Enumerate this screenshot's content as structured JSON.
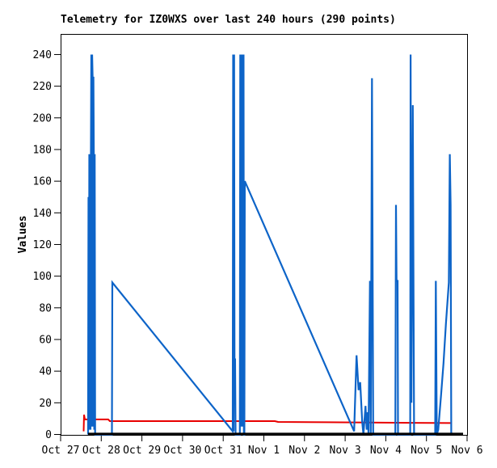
{
  "chart_data": {
    "type": "line",
    "title": "Telemetry for IZ0WXS over last 240 hours (290 points)",
    "ylabel": "Values",
    "xlabel": "",
    "x_unit": "days since Oct 27 00:00",
    "xlim": [
      0,
      10
    ],
    "ylim": [
      0,
      253
    ],
    "grid": false,
    "legend": "none",
    "background": "#ffffff",
    "frame_color": "#000000",
    "x_ticks": [
      {
        "pos": 0,
        "label": "Oct 27"
      },
      {
        "pos": 1,
        "label": "Oct 28"
      },
      {
        "pos": 2,
        "label": "Oct 29"
      },
      {
        "pos": 3,
        "label": "Oct 30"
      },
      {
        "pos": 4,
        "label": "Oct 31"
      },
      {
        "pos": 5,
        "label": "Nov 1"
      },
      {
        "pos": 6,
        "label": "Nov 2"
      },
      {
        "pos": 7,
        "label": "Nov 3"
      },
      {
        "pos": 8,
        "label": "Nov 4"
      },
      {
        "pos": 9,
        "label": "Nov 5"
      },
      {
        "pos": 10,
        "label": "Nov 6"
      }
    ],
    "y_ticks": [
      0,
      20,
      40,
      60,
      80,
      100,
      120,
      140,
      160,
      180,
      200,
      220,
      240
    ],
    "series": [
      {
        "name": "red-channel",
        "color": "#e80000",
        "width": 2,
        "points": [
          [
            0.567,
            2
          ],
          [
            0.577,
            12.5
          ],
          [
            0.597,
            9.5
          ],
          [
            1.17,
            9.5
          ],
          [
            1.21,
            8.4
          ],
          [
            5.27,
            8.4
          ],
          [
            5.35,
            7.9
          ],
          [
            6.55,
            7.7
          ],
          [
            9.6,
            7.2
          ]
        ]
      },
      {
        "name": "blue-channel",
        "color": "#0d64c8",
        "width": 2.2,
        "points": [
          [
            0.676,
            0
          ],
          [
            0.686,
            150
          ],
          [
            0.696,
            3
          ],
          [
            0.706,
            177
          ],
          [
            0.716,
            3
          ],
          [
            0.726,
            177
          ],
          [
            0.736,
            3
          ],
          [
            0.746,
            177
          ],
          [
            0.755,
            240
          ],
          [
            0.765,
            5
          ],
          [
            0.775,
            240
          ],
          [
            0.788,
            226
          ],
          [
            0.798,
            5
          ],
          [
            0.808,
            226
          ],
          [
            0.818,
            177
          ],
          [
            0.828,
            3
          ],
          [
            0.838,
            177
          ],
          [
            0.848,
            0
          ],
          [
            1.262,
            0
          ],
          [
            1.272,
            96
          ],
          [
            4.235,
            2
          ],
          [
            4.245,
            240
          ],
          [
            4.255,
            2
          ],
          [
            4.268,
            240
          ],
          [
            4.278,
            45
          ],
          [
            4.292,
            48
          ],
          [
            4.305,
            0
          ],
          [
            4.41,
            0
          ],
          [
            4.42,
            240
          ],
          [
            4.43,
            5
          ],
          [
            4.44,
            240
          ],
          [
            4.45,
            5
          ],
          [
            4.46,
            240
          ],
          [
            4.47,
            5
          ],
          [
            4.48,
            240
          ],
          [
            4.49,
            5
          ],
          [
            4.5,
            240
          ],
          [
            4.508,
            0
          ],
          [
            4.52,
            0
          ],
          [
            4.53,
            160
          ],
          [
            7.22,
            2
          ],
          [
            7.28,
            50
          ],
          [
            7.33,
            28
          ],
          [
            7.37,
            33
          ],
          [
            7.42,
            8
          ],
          [
            7.45,
            0
          ],
          [
            7.5,
            18
          ],
          [
            7.53,
            3
          ],
          [
            7.555,
            14
          ],
          [
            7.575,
            0
          ],
          [
            7.61,
            97
          ],
          [
            7.63,
            0
          ],
          [
            7.66,
            225
          ],
          [
            7.69,
            0
          ],
          [
            8.235,
            0
          ],
          [
            8.25,
            145
          ],
          [
            8.265,
            97
          ],
          [
            8.29,
            97
          ],
          [
            8.3,
            0
          ],
          [
            8.6,
            0
          ],
          [
            8.61,
            240
          ],
          [
            8.63,
            20
          ],
          [
            8.665,
            208
          ],
          [
            8.695,
            0
          ],
          [
            9.215,
            0
          ],
          [
            9.23,
            97
          ],
          [
            9.255,
            0
          ],
          [
            9.29,
            3
          ],
          [
            9.36,
            25
          ],
          [
            9.42,
            45
          ],
          [
            9.48,
            70
          ],
          [
            9.55,
            96
          ],
          [
            9.575,
            177
          ],
          [
            9.595,
            145
          ],
          [
            9.61,
            0
          ]
        ]
      },
      {
        "name": "black-channel",
        "color": "#000000",
        "width": 2.6,
        "points": [
          [
            0.676,
            0.4
          ],
          [
            9.9,
            0.4
          ]
        ]
      }
    ]
  }
}
